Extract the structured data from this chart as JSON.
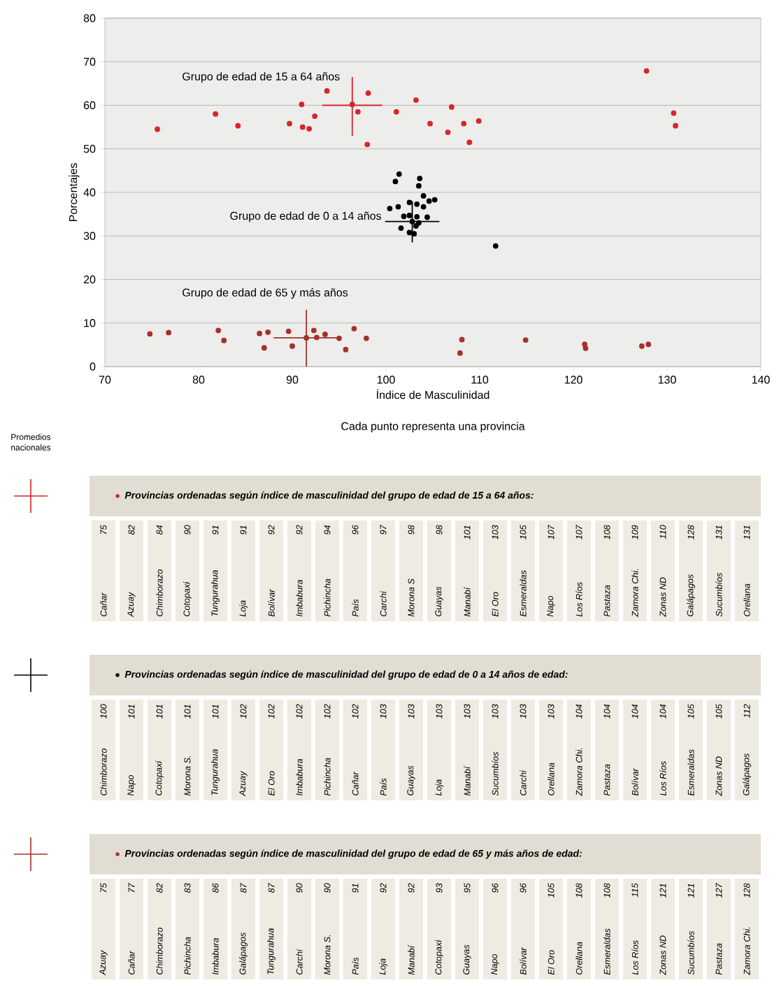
{
  "chart_data": [
    {
      "type": "scatter",
      "xlabel": "Índice de Masculinidad",
      "ylabel": "Porcentajes",
      "annotations": [
        "Cada punto representa una provincia",
        "Promedios nacionales"
      ],
      "xlim": [
        70,
        140
      ],
      "ylim": [
        0,
        80
      ],
      "xticks": [
        70,
        80,
        90,
        100,
        110,
        120,
        130,
        140
      ],
      "yticks": [
        0,
        10,
        20,
        30,
        40,
        50,
        60,
        70,
        80
      ],
      "grid": "y",
      "marker": "circle",
      "series": [
        {
          "name": "Grupo de edad de 15 a 64 años",
          "color": "#d7262b",
          "x": [
            75.6,
            81.8,
            84.2,
            89.7,
            91.0,
            91.1,
            91.8,
            92.4,
            93.7,
            96.4,
            97.0,
            98.1,
            98.0,
            101.1,
            103.2,
            104.7,
            106.6,
            107.0,
            108.3,
            108.9,
            109.9,
            127.8,
            130.7,
            130.9
          ],
          "values": [
            54.5,
            58.0,
            55.3,
            55.8,
            60.2,
            55.0,
            54.6,
            57.5,
            63.3,
            60.2,
            58.5,
            62.8,
            51.0,
            58.5,
            61.2,
            55.8,
            53.8,
            59.6,
            55.8,
            51.5,
            56.4,
            67.9,
            58.2,
            55.3
          ]
        },
        {
          "name": "Grupo de edad de 0 a 14 años",
          "color": "#000000",
          "x": [
            101.4,
            101.0,
            103.6,
            103.5,
            100.4,
            101.3,
            102.5,
            103.3,
            104.0,
            104.6,
            105.2,
            104.0,
            101.9,
            102.5,
            103.3,
            104.4,
            102.8,
            103.5,
            103.2,
            101.6,
            102.5,
            103.0,
            111.7
          ],
          "values": [
            44.2,
            42.5,
            43.2,
            41.5,
            36.3,
            36.7,
            37.7,
            37.3,
            39.2,
            38.0,
            38.3,
            36.7,
            34.5,
            34.7,
            34.4,
            34.3,
            33.3,
            33.0,
            32.3,
            31.8,
            30.8,
            30.5,
            27.7
          ]
        },
        {
          "name": "Grupo de edad de 65 y más años",
          "color": "#a8302a",
          "x": [
            74.8,
            76.8,
            82.1,
            82.7,
            86.5,
            87.0,
            87.4,
            89.6,
            90.0,
            92.3,
            92.6,
            93.5,
            95.0,
            95.7,
            96.6,
            97.9,
            108.1,
            107.9,
            114.9,
            121.2,
            121.3,
            127.3,
            128.0,
            91.5
          ],
          "values": [
            7.5,
            7.8,
            8.3,
            6.0,
            7.6,
            4.3,
            7.9,
            8.1,
            4.7,
            8.3,
            6.7,
            7.4,
            6.5,
            3.9,
            8.7,
            6.5,
            6.2,
            3.1,
            6.1,
            5.1,
            4.2,
            4.7,
            5.1,
            6.6
          ]
        },
        {
          "type": "line",
          "color": "#d7262b",
          "marker": "none",
          "x": [
            93.2,
            99.6
          ],
          "values": [
            60.0,
            60.0
          ]
        },
        {
          "type": "line",
          "color": "#d7262b",
          "marker": "none",
          "x": [
            96.4,
            96.4
          ],
          "values": [
            53.0,
            66.5
          ]
        },
        {
          "type": "line",
          "color": "#000000",
          "marker": "none",
          "x": [
            99.9,
            105.7
          ],
          "values": [
            33.3,
            33.3
          ]
        },
        {
          "type": "line",
          "color": "#000000",
          "marker": "none",
          "x": [
            102.8,
            102.8
          ],
          "values": [
            28.5,
            38.0
          ]
        },
        {
          "type": "line",
          "color": "#a8302a",
          "marker": "none",
          "x": [
            88.0,
            95.0
          ],
          "values": [
            6.6,
            6.6
          ]
        },
        {
          "type": "line",
          "color": "#a8302a",
          "marker": "none",
          "x": [
            91.5,
            91.5
          ],
          "values": [
            0.0,
            13.0
          ]
        }
      ]
    },
    {
      "type": "other",
      "title": "Provincias ordenadas según índice de masculinidad del grupo de edad de 15 a 64 años:",
      "data_labels": true,
      "categories": [
        "Cañar",
        "Azuay",
        "Chimborazo",
        "Cotopaxi",
        "Tungurahua",
        "Loja",
        "Bolívar",
        "Imbabura",
        "Pichincha",
        "País",
        "Carchi",
        "Morona S",
        "Guayas",
        "Manabí",
        "El Oro",
        "Esmeraldas",
        "Napo",
        "Los Ríos",
        "Pastaza",
        "Zamora Chi.",
        "Zonas ND",
        "Galápagos",
        "Sucumbíos",
        "Orellana"
      ],
      "values": [
        75,
        82,
        84,
        90,
        91,
        91,
        92,
        92,
        94,
        96,
        97,
        98,
        98,
        101,
        103,
        105,
        107,
        107,
        108,
        109,
        110,
        128,
        131,
        131
      ]
    },
    {
      "type": "other",
      "title": "Provincias ordenadas según índice de masculinidad del grupo de edad de 0 a 14 años de edad:",
      "data_labels": true,
      "categories": [
        "Chimborazo",
        "Napo",
        "Cotopaxi",
        "Morona S.",
        "Tungurahua",
        "Azuay",
        "El Oro",
        "Imbabura",
        "Pichincha",
        "Cañar",
        "País",
        "Guayas",
        "Loja",
        "Manabí",
        "Sucumbíos",
        "Carchi",
        "Orellana",
        "Zamora Chi.",
        "Pastaza",
        "Bolívar",
        "Los Ríos",
        "Esmeraldas",
        "Zonas ND",
        "Galápagos"
      ],
      "values": [
        100,
        101,
        101,
        101,
        101,
        102,
        102,
        102,
        102,
        102,
        103,
        103,
        103,
        103,
        103,
        103,
        103,
        104,
        104,
        104,
        104,
        105,
        105,
        112
      ]
    },
    {
      "type": "other",
      "title": "Provincias ordenadas según índice de masculinidad del grupo de edad de 65 y más años de edad:",
      "data_labels": true,
      "categories": [
        "Azuay",
        "Cañar",
        "Chimborazo",
        "Pichincha",
        "Imbabura",
        "Galápagos",
        "Tungurahua",
        "Carchi",
        "Morona S.",
        "País",
        "Loja",
        "Manabí",
        "Cotopaxi",
        "Guayas",
        "Napo",
        "Bolívar",
        "El Oro",
        "Orellana",
        "Esmeraldas",
        "Los Ríos",
        "Zonas ND",
        "Sucumbíos",
        "Pastaza",
        "Zamora Chi."
      ],
      "values": [
        75,
        77,
        82,
        83,
        86,
        87,
        87,
        90,
        90,
        91,
        92,
        92,
        93,
        95,
        96,
        96,
        105,
        108,
        108,
        115,
        121,
        121,
        127,
        128
      ]
    }
  ]
}
